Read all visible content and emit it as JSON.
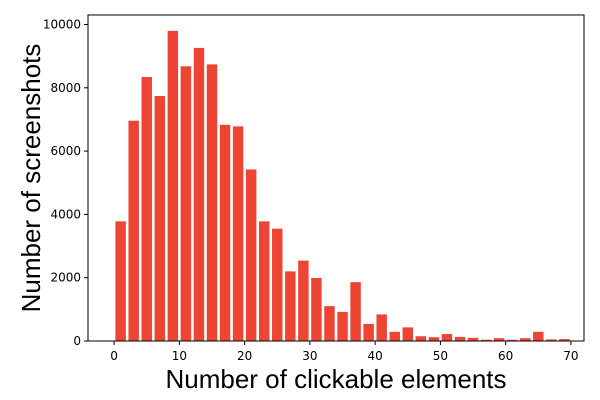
{
  "chart_data": {
    "type": "bar",
    "title": "",
    "xlabel": "Number of clickable elements",
    "ylabel": "Number of screenshots",
    "bar_color": "#EE4433",
    "xlim": [
      -4,
      72
    ],
    "ylim": [
      0,
      10300
    ],
    "x_ticks": [
      0,
      10,
      20,
      30,
      40,
      50,
      60,
      70
    ],
    "y_ticks": [
      0,
      2000,
      4000,
      6000,
      8000,
      10000
    ],
    "grid": false,
    "bin_width": 2,
    "bins": [
      1,
      3,
      5,
      7,
      9,
      11,
      13,
      15,
      17,
      19,
      21,
      23,
      25,
      27,
      29,
      31,
      33,
      35,
      37,
      39,
      41,
      43,
      45,
      47,
      49,
      51,
      53,
      55,
      57,
      59,
      61,
      63,
      65,
      67,
      69
    ],
    "values": [
      3780,
      6960,
      8340,
      7740,
      9800,
      8680,
      9260,
      8740,
      6830,
      6780,
      5420,
      3780,
      3550,
      2200,
      2540,
      1990,
      1100,
      920,
      1860,
      540,
      840,
      290,
      430,
      150,
      120,
      220,
      130,
      100,
      40,
      90,
      40,
      90,
      290,
      50,
      60
    ]
  }
}
